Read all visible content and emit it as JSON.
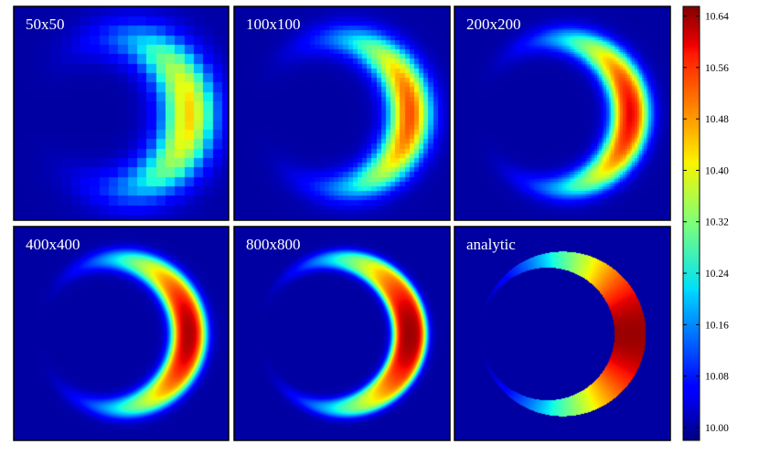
{
  "chart_data": {
    "type": "heatmap",
    "panels": [
      {
        "title": "50x50",
        "resolution": 50
      },
      {
        "title": "100x100",
        "resolution": 100
      },
      {
        "title": "200x200",
        "resolution": 200
      },
      {
        "title": "400x400",
        "resolution": 400
      },
      {
        "title": "800x800",
        "resolution": 800
      },
      {
        "title": "analytic",
        "resolution": null
      }
    ],
    "colorbar": {
      "colormap": "jet",
      "vmin": 9.98,
      "vmax": 10.655,
      "ticks": [
        10.0,
        10.08,
        10.16,
        10.24,
        10.32,
        10.4,
        10.48,
        10.56,
        10.64
      ],
      "tick_labels": [
        "10.00",
        "10.08",
        "10.16",
        "10.24",
        "10.32",
        "10.40",
        "10.48",
        "10.56",
        "10.64"
      ]
    },
    "field": {
      "background_value": 10.0,
      "description_shape": "crescent",
      "outer_circle_center": [
        0.5,
        0.5
      ],
      "outer_circle_radius": 0.385,
      "inner_circle_center": [
        0.43,
        0.5
      ],
      "inner_circle_radius": 0.31,
      "peak_value": 10.64,
      "min_ring_value": 10.0
    }
  }
}
